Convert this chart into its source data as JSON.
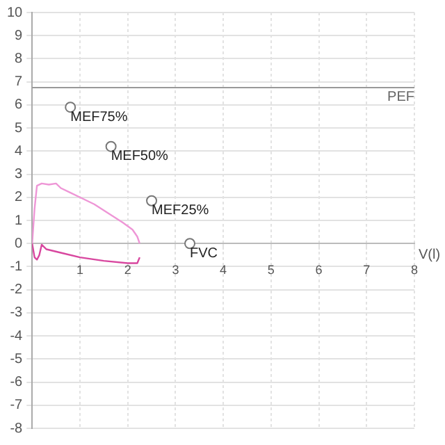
{
  "chart_data": {
    "type": "line",
    "xlabel": "V(l)",
    "xlim": [
      0,
      8
    ],
    "xticks": [
      1,
      2,
      3,
      4,
      5,
      6,
      7,
      8
    ],
    "ylim": [
      -8,
      10
    ],
    "yticks": [
      -8,
      -7,
      -6,
      -5,
      -4,
      -3,
      -2,
      -1,
      0,
      1,
      2,
      3,
      4,
      5,
      6,
      7,
      8,
      9,
      10
    ],
    "grid": true,
    "legend": false,
    "series": [
      {
        "type": "line",
        "color": "#ee96d6",
        "marker": "none",
        "x": [
          0,
          0.05,
          0.1,
          0.2,
          0.35,
          0.5,
          0.6,
          0.8,
          1.0,
          1.3,
          1.6,
          1.9,
          2.1,
          2.2,
          2.25
        ],
        "values": [
          0,
          1.5,
          2.5,
          2.6,
          2.55,
          2.6,
          2.4,
          2.2,
          2.0,
          1.7,
          1.3,
          0.9,
          0.6,
          0.3,
          0
        ]
      },
      {
        "color": "#d8479f",
        "marker": "none",
        "x": [
          0,
          0.05,
          0.1,
          0.15,
          0.2,
          0.3,
          0.6,
          1.0,
          1.5,
          2.0,
          2.2,
          2.25
        ],
        "values": [
          0,
          -0.6,
          -0.7,
          -0.5,
          -0.05,
          -0.25,
          -0.4,
          -0.6,
          -0.75,
          -0.85,
          -0.85,
          -0.6
        ]
      },
      {
        "type": "scatter",
        "color": "#777777",
        "marker": "circle",
        "x": [
          0.8,
          1.65,
          2.5,
          3.3
        ],
        "values": [
          5.9,
          4.2,
          1.85,
          0
        ]
      }
    ],
    "ref_lines": [
      {
        "axis": "y",
        "value": 6.75,
        "label": "PEF",
        "color": "#999999"
      }
    ],
    "annotations": [
      {
        "text": "MEF75%",
        "x": 0.8,
        "y": 5.9
      },
      {
        "text": "MEF50%",
        "x": 1.65,
        "y": 4.2
      },
      {
        "text": "MEF25%",
        "x": 2.5,
        "y": 1.85
      },
      {
        "text": "FVC",
        "x": 3.3,
        "y": 0
      }
    ]
  }
}
